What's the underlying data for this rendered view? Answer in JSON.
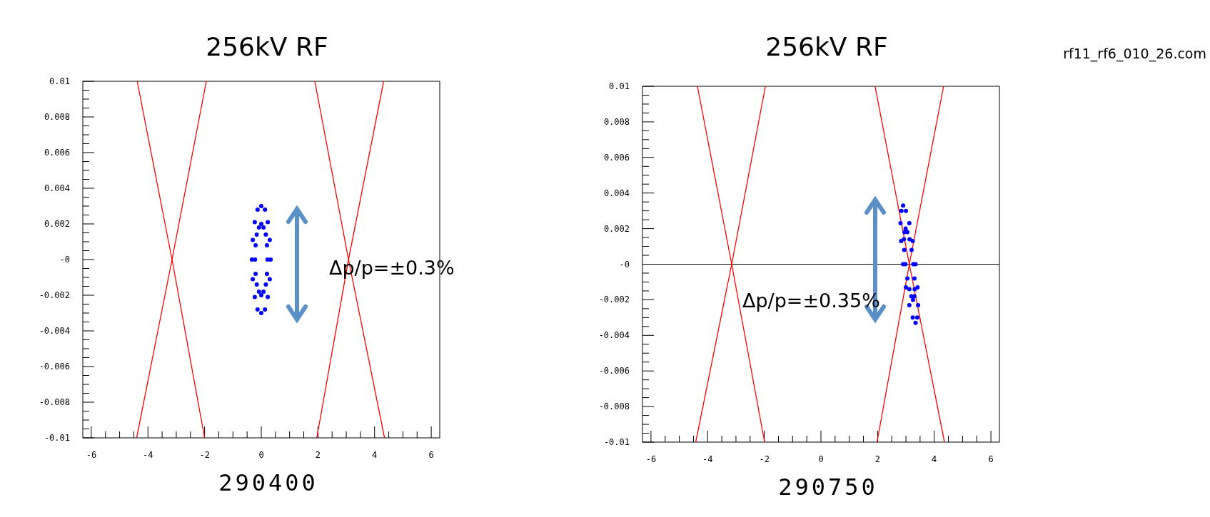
{
  "chart_data": [
    {
      "type": "scatter",
      "title": "256kV RF",
      "xlabel": "290400",
      "xlim": [
        -6.3,
        6.3
      ],
      "ylim": [
        -0.01,
        0.01
      ],
      "xticks": [
        -6,
        {
          "value": -5.5,
          "label": null
        },
        {
          "value": -5,
          "label": null
        },
        {
          "value": -4.5,
          "label": null
        },
        -4,
        {
          "value": -3.5,
          "label": null
        },
        {
          "value": -3,
          "label": null
        },
        {
          "value": -2.5,
          "label": null
        },
        -2,
        {
          "value": -1.5,
          "label": null
        },
        {
          "value": -1,
          "label": null
        },
        {
          "value": -0.5,
          "label": null
        },
        0,
        {
          "value": 0.5,
          "label": null
        },
        {
          "value": 1,
          "label": null
        },
        {
          "value": 1.5,
          "label": null
        },
        2,
        {
          "value": 2.5,
          "label": null
        },
        {
          "value": 3,
          "label": null
        },
        {
          "value": 3.5,
          "label": null
        },
        4,
        {
          "value": 4.5,
          "label": null
        },
        {
          "value": 5,
          "label": null
        },
        {
          "value": 5.5,
          "label": null
        },
        6
      ],
      "yticks": [
        -0.01,
        {
          "value": -0.0095,
          "label": null
        },
        {
          "value": -0.009,
          "label": null
        },
        {
          "value": -0.0085,
          "label": null
        },
        -0.008,
        {
          "value": -0.0075,
          "label": null
        },
        {
          "value": -0.007,
          "label": null
        },
        {
          "value": -0.0065,
          "label": null
        },
        -0.006,
        {
          "value": -0.0055,
          "label": null
        },
        {
          "value": -0.005,
          "label": null
        },
        {
          "value": -0.0045,
          "label": null
        },
        -0.004,
        {
          "value": -0.0035,
          "label": null
        },
        {
          "value": -0.003,
          "label": null
        },
        {
          "value": -0.0025,
          "label": null
        },
        -0.002,
        {
          "value": -0.0015,
          "label": null
        },
        {
          "value": -0.001,
          "label": null
        },
        {
          "value": -0.0005,
          "label": null
        },
        {
          "value": 0,
          "label": "-0"
        },
        {
          "value": 0.0005,
          "label": null
        },
        {
          "value": 0.001,
          "label": null
        },
        {
          "value": 0.0015,
          "label": null
        },
        0.002,
        {
          "value": 0.0025,
          "label": null
        },
        {
          "value": 0.003,
          "label": null
        },
        {
          "value": 0.0035,
          "label": null
        },
        0.004,
        {
          "value": 0.0045,
          "label": null
        },
        {
          "value": 0.005,
          "label": null
        },
        {
          "value": 0.0055,
          "label": null
        },
        0.006,
        {
          "value": 0.0065,
          "label": null
        },
        {
          "value": 0.007,
          "label": null
        },
        {
          "value": 0.0075,
          "label": null
        },
        0.008,
        {
          "value": 0.0085,
          "label": null
        },
        {
          "value": 0.009,
          "label": null
        },
        {
          "value": 0.0095,
          "label": null
        },
        0.01
      ],
      "series": [
        {
          "type": "line",
          "color": "#ff0000",
          "x": [
            -4.38,
            -3.15,
            -2.0
          ],
          "values": [
            0.01,
            0,
            -0.01
          ]
        },
        {
          "type": "line",
          "color": "#ff0000",
          "x": [
            -1.94,
            -3.15,
            -4.4
          ],
          "values": [
            0.01,
            0,
            -0.01
          ]
        },
        {
          "type": "line",
          "color": "#ff0000",
          "x": [
            1.89,
            3.08,
            4.35
          ],
          "values": [
            0.01,
            0,
            -0.01
          ]
        },
        {
          "type": "line",
          "color": "#ff0000",
          "x": [
            4.32,
            3.08,
            1.96
          ],
          "values": [
            0.01,
            0,
            -0.01
          ]
        },
        {
          "type": "scatter",
          "color": "#0000ff",
          "x": [
            0.33,
            0.3,
            0.23,
            0.13,
            0,
            -0.13,
            -0.23,
            -0.3,
            -0.33,
            -0.3,
            -0.23,
            -0.13,
            0,
            0.13,
            0.23,
            0.3,
            0.22,
            0.2,
            0.16,
            0.08,
            0,
            -0.08,
            -0.16,
            -0.2,
            -0.22,
            -0.2,
            -0.16,
            -0.08,
            0,
            0.08,
            0.16,
            0.2
          ],
          "values": [
            0,
            0.0011,
            0.0021,
            0.0028,
            0.003,
            0.0028,
            0.0021,
            0.0011,
            0,
            -0.0011,
            -0.0021,
            -0.0028,
            -0.003,
            -0.0028,
            -0.0021,
            -0.0011,
            0,
            0.0008,
            0.0014,
            0.0018,
            0.002,
            0.0018,
            0.0014,
            0.0008,
            0,
            -0.0008,
            -0.0014,
            -0.0018,
            -0.002,
            -0.0018,
            -0.0014,
            -0.0008
          ]
        }
      ],
      "annotations": [
        "Δp/p=±0.3%"
      ]
    },
    {
      "type": "scatter",
      "title": "256kV RF",
      "xlabel": "290750",
      "xlim": [
        -6.3,
        6.3
      ],
      "ylim": [
        -0.01,
        0.01
      ],
      "xticks": [
        -6,
        {
          "value": -5.5,
          "label": null
        },
        {
          "value": -5,
          "label": null
        },
        {
          "value": -4.5,
          "label": null
        },
        -4,
        {
          "value": -3.5,
          "label": null
        },
        {
          "value": -3,
          "label": null
        },
        {
          "value": -2.5,
          "label": null
        },
        -2,
        {
          "value": -1.5,
          "label": null
        },
        {
          "value": -1,
          "label": null
        },
        {
          "value": -0.5,
          "label": null
        },
        0,
        {
          "value": 0.5,
          "label": null
        },
        {
          "value": 1,
          "label": null
        },
        {
          "value": 1.5,
          "label": null
        },
        2,
        {
          "value": 2.5,
          "label": null
        },
        {
          "value": 3,
          "label": null
        },
        {
          "value": 3.5,
          "label": null
        },
        4,
        {
          "value": 4.5,
          "label": null
        },
        {
          "value": 5,
          "label": null
        },
        {
          "value": 5.5,
          "label": null
        },
        6
      ],
      "yticks": [
        -0.01,
        {
          "value": -0.0095,
          "label": null
        },
        {
          "value": -0.009,
          "label": null
        },
        {
          "value": -0.0085,
          "label": null
        },
        -0.008,
        {
          "value": -0.0075,
          "label": null
        },
        {
          "value": -0.007,
          "label": null
        },
        {
          "value": -0.0065,
          "label": null
        },
        -0.006,
        {
          "value": -0.0055,
          "label": null
        },
        {
          "value": -0.005,
          "label": null
        },
        {
          "value": -0.0045,
          "label": null
        },
        -0.004,
        {
          "value": -0.0035,
          "label": null
        },
        {
          "value": -0.003,
          "label": null
        },
        {
          "value": -0.0025,
          "label": null
        },
        -0.002,
        {
          "value": -0.0015,
          "label": null
        },
        {
          "value": -0.001,
          "label": null
        },
        {
          "value": -0.0005,
          "label": null
        },
        {
          "value": 0,
          "label": "-0"
        },
        {
          "value": 0.0005,
          "label": null
        },
        {
          "value": 0.001,
          "label": null
        },
        {
          "value": 0.0015,
          "label": null
        },
        0.002,
        {
          "value": 0.0025,
          "label": null
        },
        {
          "value": 0.003,
          "label": null
        },
        {
          "value": 0.0035,
          "label": null
        },
        0.004,
        {
          "value": 0.0045,
          "label": null
        },
        {
          "value": 0.005,
          "label": null
        },
        {
          "value": 0.0055,
          "label": null
        },
        0.006,
        {
          "value": 0.0065,
          "label": null
        },
        {
          "value": 0.007,
          "label": null
        },
        {
          "value": 0.0075,
          "label": null
        },
        0.008,
        {
          "value": 0.0085,
          "label": null
        },
        {
          "value": 0.009,
          "label": null
        },
        {
          "value": 0.0095,
          "label": null
        },
        0.01
      ],
      "ref_lines": [
        {
          "axis": "y",
          "value": 0,
          "color": "#000000"
        }
      ],
      "series": [
        {
          "type": "line",
          "color": "#ff0000",
          "x": [
            -4.36,
            -3.15,
            -1.99
          ],
          "values": [
            0.01,
            0,
            -0.01
          ]
        },
        {
          "type": "line",
          "color": "#ff0000",
          "x": [
            -1.96,
            -3.15,
            -4.42
          ],
          "values": [
            0.01,
            0,
            -0.01
          ]
        },
        {
          "type": "line",
          "color": "#ff0000",
          "x": [
            1.91,
            3.12,
            4.36
          ],
          "values": [
            0.01,
            0,
            -0.01
          ]
        },
        {
          "type": "line",
          "color": "#ff0000",
          "x": [
            4.33,
            3.12,
            1.98
          ],
          "values": [
            0.01,
            0,
            -0.01
          ]
        },
        {
          "type": "scatter",
          "color": "#0000ff",
          "x": [
            3.34,
            3.24,
            3.12,
            3.0,
            2.9,
            2.84,
            2.81,
            2.83,
            2.9,
            3.0,
            3.12,
            3.24,
            3.34,
            3.4,
            3.43,
            3.41,
            3.26,
            3.2,
            3.13,
            3.05,
            2.99,
            2.95,
            2.93,
            2.94,
            2.98,
            3.05,
            3.12,
            3.19,
            3.25,
            3.3,
            3.31,
            3.3
          ],
          "values": [
            0,
            0.0013,
            0.0023,
            0.003,
            0.0033,
            0.003,
            0.0023,
            0.0013,
            0,
            -0.0013,
            -0.0023,
            -0.003,
            -0.0033,
            -0.003,
            -0.0023,
            -0.0013,
            0,
            0.0008,
            0.0014,
            0.0018,
            0.002,
            0.0018,
            0.0014,
            0.0008,
            0,
            -0.0008,
            -0.0014,
            -0.0018,
            -0.002,
            -0.0018,
            -0.0014,
            -0.0008
          ]
        }
      ],
      "annotations": [
        "Δp/p=±0.35%",
        "rf11_rf6_010_26.com"
      ]
    }
  ]
}
